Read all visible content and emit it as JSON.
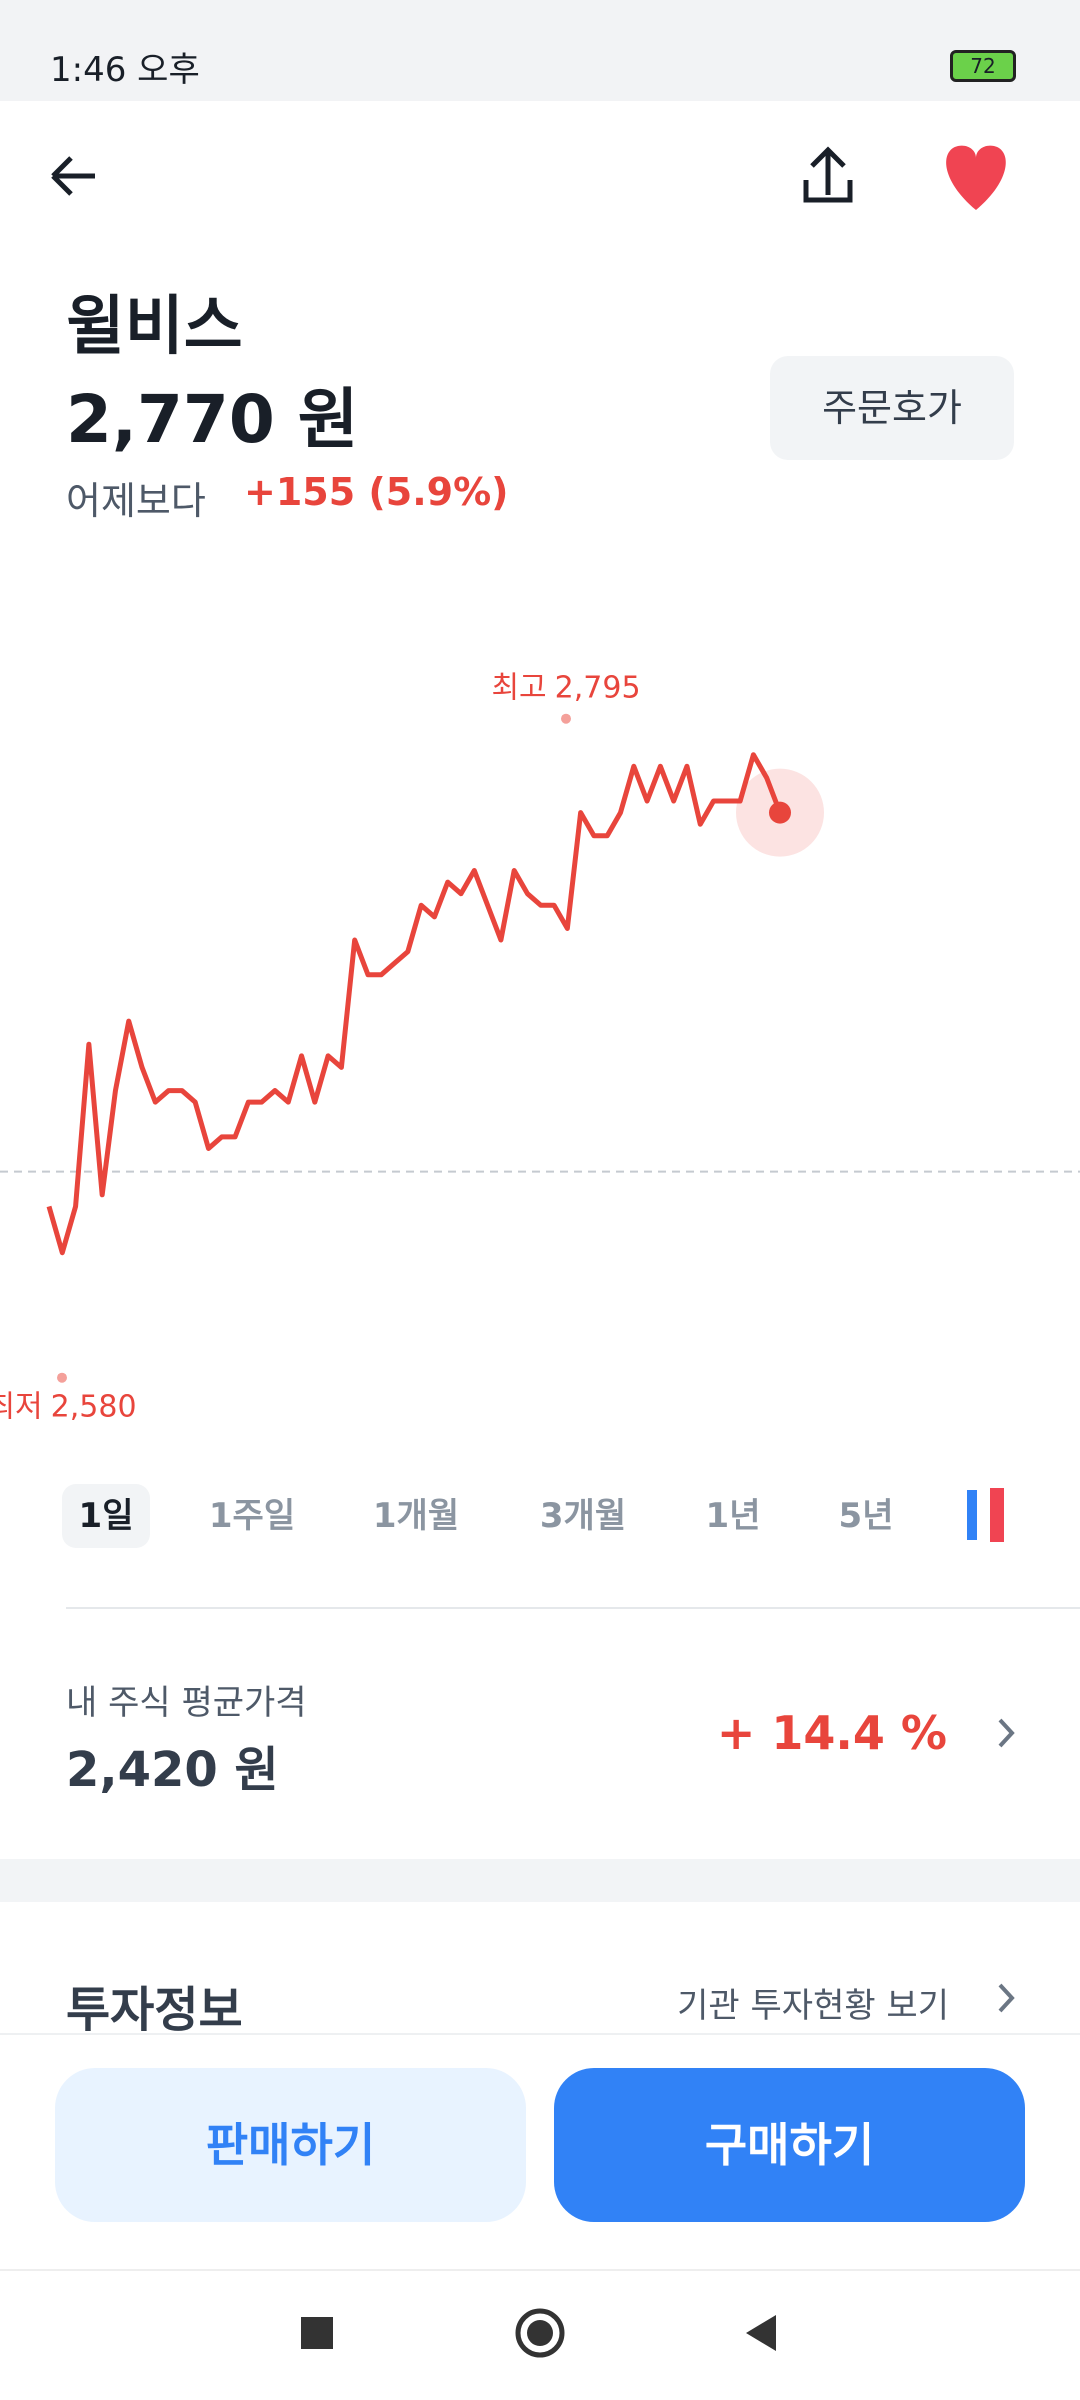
{
  "status": {
    "time": "1:46 오후",
    "battery": "72"
  },
  "stock": {
    "name": "윌비스",
    "price": "2,770 원",
    "change_label": "어제보다",
    "change": "+155 (5.9%)",
    "order_button": "주문호가"
  },
  "chart_data": {
    "type": "line",
    "color": "#e8453c",
    "values": [
      2600,
      2580,
      2600,
      2670,
      2605,
      2650,
      2680,
      2660,
      2645,
      2650,
      2650,
      2645,
      2625,
      2630,
      2630,
      2645,
      2645,
      2650,
      2645,
      2665,
      2645,
      2665,
      2660,
      2715,
      2700,
      2700,
      2705,
      2710,
      2730,
      2725,
      2740,
      2735,
      2745,
      2730,
      2715,
      2745,
      2735,
      2730,
      2730,
      2720,
      2770,
      2760,
      2760,
      2770,
      2790,
      2775,
      2790,
      2775,
      2790,
      2765,
      2775,
      2775,
      2775,
      2795,
      2785,
      2770
    ],
    "ylim": [
      2500,
      2870
    ],
    "baseline": 2615,
    "high": {
      "label": "최고",
      "value": {
        "value": 2795,
        "label": "2,795"
      }
    },
    "low": {
      "label": "최저",
      "value": {
        "value": 2580,
        "label": "2,580"
      }
    }
  },
  "periods": [
    "1일",
    "1주일",
    "1개월",
    "3개월",
    "1년",
    "5년"
  ],
  "my_stock": {
    "label": "내 주식 평균가격",
    "price": "2,420 원",
    "return": "+ 14.4 %"
  },
  "invest_info": {
    "title": "투자정보",
    "link": "기관 투자현황 보기"
  },
  "buttons": {
    "sell": "판매하기",
    "buy": "구매하기"
  }
}
